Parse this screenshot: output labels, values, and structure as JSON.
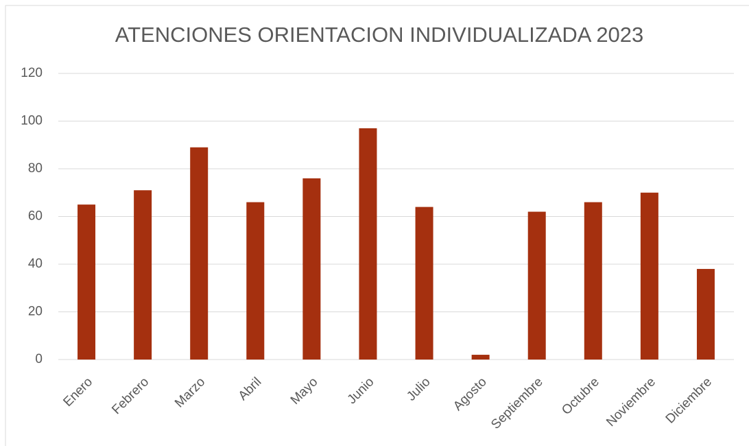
{
  "chart_data": {
    "type": "bar",
    "title": "ATENCIONES ORIENTACION INDIVIDUALIZADA 2023",
    "categories": [
      "Enero",
      "Febrero",
      "Marzo",
      "Abril",
      "Mayo",
      "Junio",
      "Julio",
      "Agosto",
      "Septiembre",
      "Octubre",
      "Noviembre",
      "Diciembre"
    ],
    "values": [
      65,
      71,
      89,
      66,
      76,
      97,
      64,
      2,
      62,
      66,
      70,
      38
    ],
    "color": "#a5300f",
    "ylim": [
      0,
      120
    ],
    "yticks": [
      0,
      20,
      40,
      60,
      80,
      100,
      120
    ],
    "grid": true
  }
}
